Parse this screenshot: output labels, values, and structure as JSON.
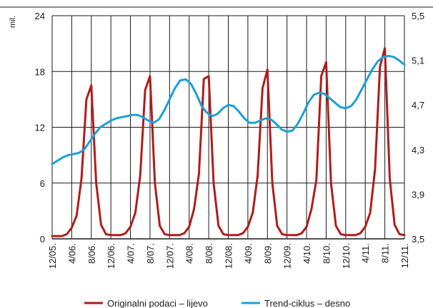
{
  "chart_data": {
    "type": "line",
    "title": "",
    "y_unit_label": "mil.",
    "left_axis": {
      "ticks": [
        "0",
        "6",
        "12",
        "18",
        "24"
      ],
      "ylim": [
        0,
        24
      ]
    },
    "right_axis": {
      "ticks": [
        "3,5",
        "3,9",
        "4,3",
        "4,7",
        "5,1",
        "5,5"
      ],
      "ylim": [
        3.5,
        5.5
      ]
    },
    "x_tick_labels": [
      "12/05.",
      "4/06.",
      "8/06.",
      "12/06.",
      "4/07.",
      "8/07.",
      "12/07.",
      "4/08.",
      "8/08.",
      "12/08.",
      "4/09.",
      "8/09.",
      "12/09.",
      "4/10.",
      "8/10.",
      "12/10.",
      "4/11.",
      "8/11.",
      "12/11."
    ],
    "grid": "vertical and horizontal",
    "legend_position": "bottom",
    "series": [
      {
        "name": "Originalni podaci – lijevo",
        "axis": "left",
        "color": "#b01c1c",
        "values": [
          0.3,
          0.3,
          0.3,
          0.5,
          1.2,
          2.5,
          6.5,
          15,
          16.5,
          6,
          1.5,
          0.5,
          0.4,
          0.4,
          0.4,
          0.6,
          1.3,
          2.8,
          6.8,
          16,
          17.5,
          6,
          1.4,
          0.5,
          0.4,
          0.4,
          0.4,
          0.6,
          1.3,
          3.2,
          7,
          17.2,
          17.5,
          6,
          1.4,
          0.5,
          0.4,
          0.4,
          0.4,
          0.6,
          1.3,
          2.8,
          6.8,
          16.2,
          18.2,
          6,
          1.4,
          0.5,
          0.4,
          0.4,
          0.4,
          0.6,
          1.3,
          3.2,
          6.3,
          17.5,
          19,
          6,
          1.4,
          0.5,
          0.4,
          0.4,
          0.4,
          0.6,
          1.3,
          2.8,
          7.5,
          18.5,
          20.5,
          6.5,
          1.5,
          0.5,
          0.4
        ]
      },
      {
        "name": "Trend-ciklus – desno",
        "axis": "right",
        "color": "#1aa0d8",
        "values": [
          4.17,
          4.2,
          4.23,
          4.25,
          4.26,
          4.27,
          4.3,
          4.37,
          4.44,
          4.5,
          4.53,
          4.56,
          4.58,
          4.59,
          4.6,
          4.61,
          4.61,
          4.59,
          4.56,
          4.54,
          4.57,
          4.65,
          4.75,
          4.85,
          4.92,
          4.93,
          4.89,
          4.8,
          4.69,
          4.63,
          4.6,
          4.62,
          4.67,
          4.7,
          4.69,
          4.64,
          4.58,
          4.54,
          4.54,
          4.56,
          4.58,
          4.57,
          4.53,
          4.48,
          4.46,
          4.47,
          4.53,
          4.62,
          4.72,
          4.79,
          4.81,
          4.8,
          4.76,
          4.72,
          4.68,
          4.67,
          4.69,
          4.75,
          4.84,
          4.93,
          5.02,
          5.09,
          5.13,
          5.14,
          5.13,
          5.1,
          5.06
        ]
      }
    ]
  }
}
